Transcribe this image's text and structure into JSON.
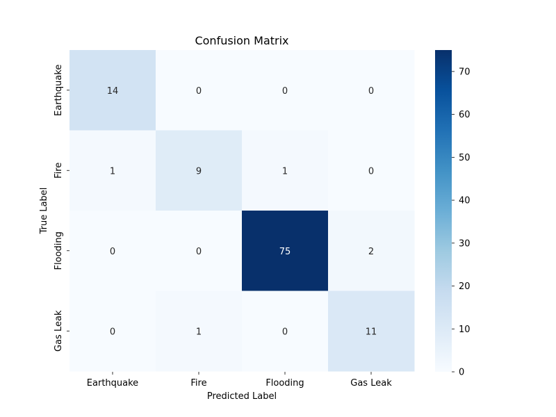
{
  "chart_data": {
    "type": "heatmap",
    "title": "Confusion Matrix",
    "xlabel": "Predicted Label",
    "ylabel": "True Label",
    "x_categories": [
      "Earthquake",
      "Fire",
      "Flooding",
      "Gas Leak"
    ],
    "y_categories": [
      "Earthquake",
      "Fire",
      "Flooding",
      "Gas Leak"
    ],
    "values": [
      [
        14,
        0,
        0,
        0
      ],
      [
        1,
        9,
        1,
        0
      ],
      [
        0,
        0,
        75,
        2
      ],
      [
        0,
        1,
        0,
        11
      ]
    ],
    "colorbar": {
      "min": 0,
      "max": 75,
      "ticks": [
        0,
        10,
        20,
        30,
        40,
        50,
        60,
        70
      ]
    },
    "colormap": "Blues",
    "colors": {
      "low": "#f7fbff",
      "high": "#08306b",
      "text_dark": "#262626",
      "text_light": "#ffffff"
    },
    "grid": false
  }
}
